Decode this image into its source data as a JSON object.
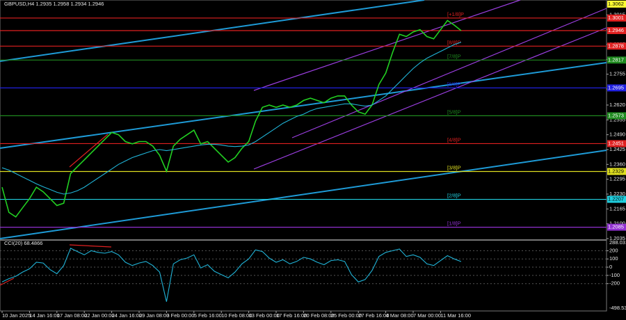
{
  "chart_data": [
    {
      "type": "line",
      "title": "GBPUSD,H4  1.2935 1.2958 1.2934 1.2946",
      "categories": [
        "10 Jan 2025",
        null,
        null,
        null,
        "14 Jan 16:00",
        null,
        null,
        null,
        "17 Jan 08:00",
        null,
        null,
        null,
        "22 Jan 00:00",
        null,
        null,
        null,
        "24 Jan 16:00",
        null,
        null,
        null,
        "29 Jan 08:00",
        null,
        null,
        null,
        "3 Feb 00:00",
        null,
        null,
        null,
        "5 Feb 16:00",
        null,
        null,
        null,
        "10 Feb 08:00",
        null,
        null,
        null,
        "13 Feb 00:00",
        null,
        null,
        null,
        "17 Feb 16:00",
        null,
        null,
        null,
        "20 Feb 08:00",
        null,
        null,
        null,
        "25 Feb 00:00",
        null,
        null,
        null,
        "27 Feb 16:00",
        null,
        null,
        null,
        "4 Mar 08:00",
        null,
        null,
        null,
        "7 Mar 00:00",
        null,
        null,
        null,
        "11 Mar 16:00",
        null,
        null,
        null
      ],
      "series": [
        {
          "color": "#22d022",
          "values": [
            1.226,
            1.215,
            1.213,
            1.217,
            1.221,
            1.226,
            1.224,
            1.221,
            1.218,
            1.219,
            1.232,
            1.235,
            1.238,
            1.241,
            1.244,
            1.247,
            1.25,
            1.249,
            1.246,
            1.245,
            1.246,
            1.246,
            1.244,
            1.24,
            1.233,
            1.244,
            1.247,
            1.249,
            1.251,
            1.245,
            1.246,
            1.243,
            1.24,
            1.237,
            1.239,
            1.243,
            1.246,
            1.255,
            1.261,
            1.262,
            1.261,
            1.262,
            1.261,
            1.262,
            1.264,
            1.265,
            1.264,
            1.263,
            1.265,
            1.266,
            1.266,
            1.262,
            1.259,
            1.258,
            1.262,
            1.271,
            1.276,
            1.285,
            1.293,
            1.292,
            1.294,
            1.295,
            1.292,
            1.291,
            1.295,
            1.299,
            1.297,
            1.2946
          ]
        },
        {
          "color": "#20b4d8",
          "values": [
            1.2345,
            1.2335,
            1.232,
            1.2305,
            1.229,
            1.2275,
            1.2262,
            1.225,
            1.2238,
            1.223,
            1.2235,
            1.2245,
            1.226,
            1.228,
            1.23,
            1.232,
            1.234,
            1.236,
            1.2375,
            1.239,
            1.24,
            1.241,
            1.242,
            1.2425,
            1.242,
            1.2425,
            1.243,
            1.2435,
            1.244,
            1.2445,
            1.2448,
            1.2448,
            1.2445,
            1.244,
            1.2438,
            1.244,
            1.2445,
            1.246,
            1.248,
            1.25,
            1.252,
            1.254,
            1.2555,
            1.257,
            1.258,
            1.2595,
            1.2605,
            1.261,
            1.2615,
            1.262,
            1.2625,
            1.2625,
            1.262,
            1.2615,
            1.262,
            1.264,
            1.266,
            1.269,
            1.272,
            1.275,
            1.278,
            1.2805,
            1.2825,
            1.284,
            1.2855,
            1.287,
            1.2885,
            1.2895
          ]
        }
      ],
      "ylim": [
        1.2035,
        1.308
      ],
      "yticks": [
        1.2035,
        {
          "value": 1.21,
          "label": "1.2100"
        },
        1.2165,
        {
          "value": 1.223,
          "label": "1.2230"
        },
        1.2295,
        {
          "value": 1.236,
          "label": "1.2360"
        },
        1.2425,
        {
          "value": 1.249,
          "label": "1.2490"
        },
        1.2555,
        {
          "value": 1.262,
          "label": "1.2620"
        },
        {
          "value": 1.269,
          "label": "1.2690"
        },
        1.2755,
        {
          "value": 1.282,
          "label": "1.2820"
        },
        1.2885,
        {
          "value": 1.295,
          "label": "1.2950"
        },
        1.3015
      ],
      "levels": [
        {
          "value": 1.3062,
          "color": "#ffff33",
          "line": false
        },
        {
          "value": 1.3001,
          "label": "[+1/8]P",
          "color": "#e02020"
        },
        {
          "value": 1.2946,
          "color": "#e02020"
        },
        {
          "value": 1.2878,
          "label": "[8/8]P",
          "color": "#e02020"
        },
        {
          "value": 1.2817,
          "label": "[7/8]P",
          "color": "#1f8a1f"
        },
        {
          "value": 1.2695,
          "label": "[6/8]P",
          "color": "#2020e0"
        },
        {
          "value": 1.2573,
          "label": "[5/8]P",
          "color": "#1f8a1f"
        },
        {
          "value": 1.2451,
          "label": "[4/8]P",
          "color": "#e02020"
        },
        {
          "value": 1.2329,
          "label": "[3/8]P",
          "color": "#e0e020"
        },
        {
          "value": 1.2207,
          "label": "[2/8]P",
          "color": "#20d0e0"
        },
        {
          "value": 1.2085,
          "label": "[1/8]P",
          "color": "#9030d0"
        }
      ]
    },
    {
      "type": "line",
      "title": "CCI(20) 68.4866",
      "series": [
        {
          "color": "#20b4d8",
          "values": [
            -180,
            -140,
            -110,
            -60,
            -20,
            60,
            50,
            -30,
            -80,
            20,
            230,
            190,
            150,
            200,
            180,
            170,
            190,
            150,
            60,
            20,
            50,
            70,
            20,
            -60,
            -420,
            40,
            90,
            110,
            150,
            -10,
            30,
            -50,
            -90,
            -130,
            -60,
            40,
            100,
            210,
            190,
            110,
            60,
            90,
            40,
            70,
            120,
            100,
            60,
            30,
            80,
            90,
            70,
            -90,
            -180,
            -150,
            -40,
            130,
            180,
            200,
            220,
            130,
            150,
            120,
            40,
            20,
            80,
            140,
            100,
            68.4866
          ]
        }
      ],
      "ylim": [
        -498.5384,
        288.0311
      ],
      "yticks": [
        -200,
        -100,
        0,
        100,
        200
      ]
    }
  ]
}
